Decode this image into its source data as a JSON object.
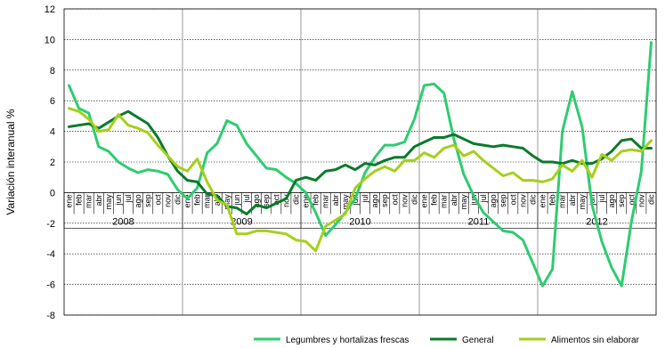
{
  "chart_data": {
    "type": "line",
    "ylabel": "Variación interanual %",
    "ylim": [
      -8,
      12
    ],
    "yticks": [
      -8,
      -6,
      -4,
      -2,
      0,
      2,
      4,
      6,
      8,
      10,
      12
    ],
    "grid": true,
    "legend_position": "bottom-right",
    "months": [
      "ene",
      "feb",
      "mar",
      "abr",
      "may",
      "jun",
      "jul",
      "ago",
      "sep",
      "oct",
      "nov",
      "dic"
    ],
    "years": [
      "2008",
      "2009",
      "2010",
      "2011",
      "2012"
    ],
    "series": [
      {
        "name": "Legumbres y hortalizas frescas",
        "color": "#2ecc71",
        "values": [
          7.0,
          5.5,
          5.2,
          3.0,
          2.7,
          2.0,
          1.6,
          1.3,
          1.5,
          1.4,
          1.2,
          0.2,
          -0.4,
          0.3,
          2.6,
          3.2,
          4.7,
          4.4,
          3.2,
          2.4,
          1.6,
          1.5,
          1.0,
          0.6,
          0.0,
          -1.3,
          -2.8,
          -2.1,
          -1.3,
          -0.4,
          1.3,
          2.3,
          3.1,
          3.1,
          3.3,
          4.8,
          7.0,
          7.1,
          6.5,
          3.5,
          1.2,
          -0.2,
          -1.3,
          -1.9,
          -2.5,
          -2.6,
          -3.1,
          -4.6,
          -6.1,
          -5.0,
          4.0,
          6.6,
          4.3,
          -0.8,
          -3.2,
          -4.9,
          -6.1,
          -1.9,
          1.4,
          9.8
        ]
      },
      {
        "name": "General",
        "color": "#0b7a2a",
        "values": [
          4.3,
          4.4,
          4.5,
          4.2,
          4.6,
          5.0,
          5.3,
          4.9,
          4.5,
          3.6,
          2.4,
          1.4,
          0.8,
          0.7,
          -0.1,
          -0.2,
          -0.9,
          -1.0,
          -1.4,
          -0.8,
          -1.0,
          -0.7,
          -0.4,
          0.8,
          1.0,
          0.8,
          1.4,
          1.5,
          1.8,
          1.5,
          1.9,
          1.8,
          2.1,
          2.3,
          2.3,
          3.0,
          3.3,
          3.6,
          3.6,
          3.8,
          3.5,
          3.2,
          3.1,
          3.0,
          3.1,
          3.0,
          2.9,
          2.4,
          2.0,
          2.0,
          1.9,
          2.1,
          1.9,
          1.9,
          2.2,
          2.7,
          3.4,
          3.5,
          2.9,
          2.9
        ]
      },
      {
        "name": "Alimentos  sin elaborar",
        "color": "#a6cf1c",
        "values": [
          5.5,
          5.3,
          4.8,
          4.0,
          4.1,
          5.1,
          4.4,
          4.2,
          3.9,
          3.1,
          2.4,
          1.7,
          1.4,
          2.2,
          0.7,
          -0.5,
          -0.8,
          -2.7,
          -2.7,
          -2.5,
          -2.5,
          -2.6,
          -2.7,
          -3.1,
          -3.2,
          -3.8,
          -2.2,
          -1.8,
          -1.4,
          0.3,
          0.9,
          1.4,
          1.7,
          1.4,
          2.1,
          2.1,
          2.6,
          2.3,
          2.9,
          3.1,
          2.4,
          2.7,
          2.1,
          1.6,
          1.1,
          1.3,
          0.8,
          0.8,
          0.7,
          0.9,
          1.8,
          1.4,
          2.1,
          1.0,
          2.5,
          2.1,
          2.7,
          2.8,
          2.7,
          3.4
        ]
      }
    ]
  }
}
